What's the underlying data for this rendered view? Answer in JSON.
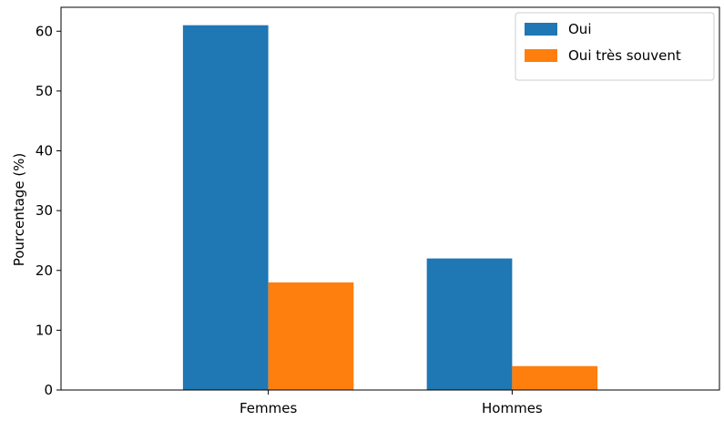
{
  "chart_data": {
    "type": "bar",
    "categories": [
      "Femmes",
      "Hommes"
    ],
    "series": [
      {
        "name": "Oui",
        "values": [
          61,
          22
        ],
        "color": "#1f77b4"
      },
      {
        "name": "Oui très souvent",
        "values": [
          18,
          4
        ],
        "color": "#ff7f0e"
      }
    ],
    "ylabel": "Pourcentage (%)",
    "ylim": [
      0,
      64
    ],
    "yticks": [
      0,
      10,
      20,
      30,
      40,
      50,
      60
    ],
    "grid": false,
    "legend_position": "top-right"
  }
}
